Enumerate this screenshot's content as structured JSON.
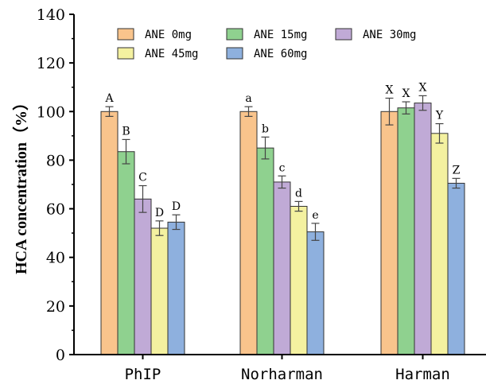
{
  "chart_data": {
    "type": "bar",
    "title": "",
    "xlabel": "",
    "ylabel": "HCA concentration（%）",
    "ylim": [
      0,
      140
    ],
    "yticks": [
      0,
      20,
      40,
      60,
      80,
      100,
      120,
      140
    ],
    "categories": [
      "PhIP",
      "Norharman",
      "Harman"
    ],
    "legend_position": "top",
    "grid": false,
    "series": [
      {
        "name": "ANE 0mg",
        "color": "#f9c48c",
        "values": [
          100.0,
          100.0,
          100.0
        ],
        "errors": [
          2.0,
          2.0,
          5.5
        ],
        "labels": [
          "A",
          "a",
          "X"
        ]
      },
      {
        "name": "ANE 15mg",
        "color": "#8fd18f",
        "values": [
          83.5,
          85.0,
          101.5
        ],
        "errors": [
          5.0,
          4.5,
          2.5
        ],
        "labels": [
          "B",
          "b",
          "X"
        ]
      },
      {
        "name": "ANE 30mg",
        "color": "#c0aad6",
        "values": [
          64.0,
          71.0,
          103.5
        ],
        "errors": [
          5.5,
          2.5,
          3.0
        ],
        "labels": [
          "C",
          "c",
          "X"
        ]
      },
      {
        "name": "ANE 45mg",
        "color": "#f4f1a0",
        "values": [
          52.0,
          61.0,
          91.0
        ],
        "errors": [
          3.0,
          2.0,
          4.0
        ],
        "labels": [
          "D",
          "d",
          "Y"
        ]
      },
      {
        "name": "ANE 60mg",
        "color": "#8eb0de",
        "values": [
          54.5,
          50.5,
          70.5
        ],
        "errors": [
          3.0,
          3.5,
          2.0
        ],
        "labels": [
          "D",
          "e",
          "Z"
        ]
      }
    ]
  }
}
